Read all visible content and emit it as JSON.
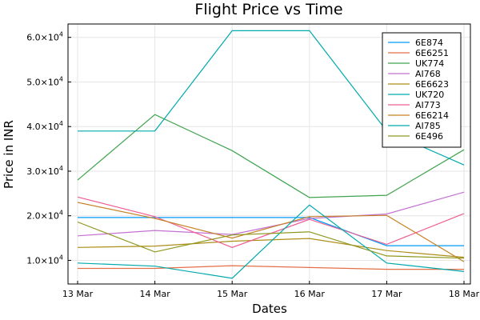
{
  "chart_data": {
    "type": "line",
    "title": "Flight Price vs Time",
    "xlabel": "Dates",
    "ylabel": "Price in INR",
    "categories": [
      "13 Mar",
      "14 Mar",
      "15 Mar",
      "16 Mar",
      "17 Mar",
      "18 Mar"
    ],
    "yticks": [
      10000,
      20000,
      30000,
      40000,
      50000,
      60000
    ],
    "ytick_labels": [
      {
        "mantissa": "1.0×10",
        "exp": "4"
      },
      {
        "mantissa": "2.0×10",
        "exp": "4"
      },
      {
        "mantissa": "3.0×10",
        "exp": "4"
      },
      {
        "mantissa": "4.0×10",
        "exp": "4"
      },
      {
        "mantissa": "5.0×10",
        "exp": "4"
      },
      {
        "mantissa": "6.0×10",
        "exp": "4"
      }
    ],
    "ylim": [
      4700,
      63000
    ],
    "grid": true,
    "legend_position": "top-right",
    "series": [
      {
        "name": "6E874",
        "color": "#009AFA",
        "values": [
          19600,
          19600,
          19600,
          19600,
          13300,
          13300
        ]
      },
      {
        "name": "6E6251",
        "color": "#E36F47",
        "values": [
          8200,
          8200,
          8800,
          8400,
          8000,
          8000
        ]
      },
      {
        "name": "UK774",
        "color": "#3EA44E",
        "values": [
          28000,
          42700,
          34600,
          24100,
          24600,
          34800
        ]
      },
      {
        "name": "AI768",
        "color": "#C371D2",
        "values": [
          15500,
          16700,
          15800,
          19400,
          20400,
          25300
        ]
      },
      {
        "name": "6E6623",
        "color": "#AC8E18",
        "values": [
          12900,
          13200,
          14300,
          14900,
          12200,
          10700
        ]
      },
      {
        "name": "UK720",
        "color": "#00AAAE",
        "values": [
          39000,
          39000,
          61500,
          61500,
          39000,
          31400
        ]
      },
      {
        "name": "AI773",
        "color": "#ED5E93",
        "values": [
          24200,
          19800,
          12900,
          19200,
          13600,
          20500
        ]
      },
      {
        "name": "6E6214",
        "color": "#C68225",
        "values": [
          23000,
          19400,
          15000,
          19800,
          20100,
          9700
        ]
      },
      {
        "name": "AI785",
        "color": "#00A9AD",
        "values": [
          9400,
          8700,
          6000,
          22400,
          9400,
          7500
        ]
      },
      {
        "name": "6E496",
        "color": "#8E971D",
        "values": [
          18600,
          11900,
          15700,
          16400,
          11000,
          10500
        ]
      }
    ]
  }
}
